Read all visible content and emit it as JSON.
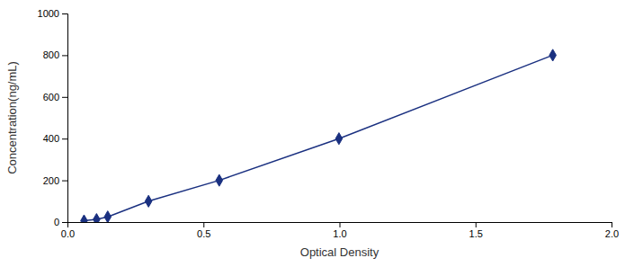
{
  "chart_data": {
    "type": "line",
    "x": [
      0.061,
      0.107,
      0.148,
      0.298,
      0.558,
      0.998,
      1.784
    ],
    "values": [
      6.25,
      12.5,
      25,
      100,
      200,
      400,
      800
    ],
    "color": "#1a3080",
    "marker": "diamond",
    "line_style": "solid",
    "xlabel": "Optical Density",
    "ylabel": "Concentration(ng/mL)",
    "xlim": [
      0,
      2.0
    ],
    "ylim": [
      0,
      1000
    ],
    "xticks": [
      {
        "value": 0,
        "label": "0.0"
      },
      0.5,
      {
        "value": 1.0,
        "label": "1.0"
      },
      1.5,
      {
        "value": 2.0,
        "label": "2.0"
      }
    ],
    "yticks": [
      0,
      200,
      400,
      600,
      800,
      1000
    ],
    "grid": false
  }
}
